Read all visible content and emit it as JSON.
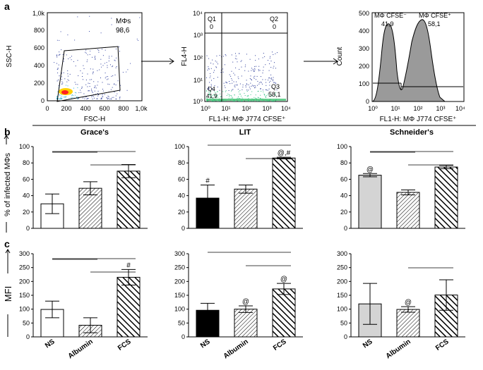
{
  "panel_labels": {
    "a": "a",
    "b": "b",
    "c": "c"
  },
  "dotplot1": {
    "gate_label": "MΦs",
    "gate_value": "98,6",
    "xlabel": "FSC-H",
    "ylabel": "SSC-H",
    "xticks": [
      "0",
      "200",
      "400",
      "600",
      "800",
      "1,0k"
    ],
    "yticks": [
      "0",
      "200",
      "400",
      "600",
      "800",
      "1,0k"
    ]
  },
  "dotplot2": {
    "xlabel": "FL1-H: MΦ J774 CFSE⁺",
    "ylabel": "FL4-H",
    "xticks": [
      "10⁰",
      "10¹",
      "10²",
      "10³",
      "10⁴"
    ],
    "yticks": [
      "10⁰",
      "10¹",
      "10²",
      "10³",
      "10⁴"
    ],
    "quadrants": [
      {
        "name": "Q1",
        "value": "0"
      },
      {
        "name": "Q2",
        "value": "0"
      },
      {
        "name": "Q3",
        "value": "58,1"
      },
      {
        "name": "Q4",
        "value": "41,9"
      }
    ]
  },
  "histogram": {
    "xlabel": "FL1-H: MΦ J774 CFSE⁺",
    "ylabel": "Count",
    "neg_label": "MΦ CFSE⁻",
    "neg_value": "41,9",
    "pos_label": "MΦ CFSE⁺",
    "pos_value": "58,1",
    "xticks": [
      "10⁰",
      "10¹",
      "10²",
      "10³",
      "10⁴"
    ],
    "yticks": [
      "0",
      "100",
      "200",
      "300",
      "400",
      "500"
    ]
  },
  "groups": [
    "Grace's",
    "LIT",
    "Schneider's"
  ],
  "categories": [
    "NS",
    "Albumin",
    "FCS"
  ],
  "ylabel_b": "% of infected MΦs",
  "ylabel_c": "MFI",
  "chart_data": [
    {
      "type": "bar",
      "panel": "b",
      "medium": "Grace's",
      "categories": [
        "NS",
        "Albumin",
        "FCS"
      ],
      "values": [
        30,
        49,
        70
      ],
      "errors": [
        12,
        8,
        8
      ],
      "ylim": [
        0,
        100
      ],
      "yticks": [
        0,
        20,
        40,
        60,
        80,
        100
      ],
      "ylabel": "% of infected MΦs",
      "annotations": [
        "",
        "",
        ""
      ],
      "significance_brackets": [
        [
          0,
          1
        ],
        [
          0,
          2
        ],
        [
          1,
          2
        ]
      ]
    },
    {
      "type": "bar",
      "panel": "b",
      "medium": "LIT",
      "categories": [
        "NS",
        "Albumin",
        "FCS"
      ],
      "values": [
        37,
        48,
        86
      ],
      "errors": [
        16,
        5,
        1
      ],
      "ylim": [
        0,
        100
      ],
      "yticks": [
        0,
        20,
        40,
        60,
        80,
        100
      ],
      "ylabel": "% of infected MΦs",
      "annotations": [
        "#",
        "",
        "@,#"
      ],
      "significance_brackets": [
        [
          0,
          2
        ],
        [
          1,
          2
        ]
      ]
    },
    {
      "type": "bar",
      "panel": "b",
      "medium": "Schneider's",
      "categories": [
        "NS",
        "Albumin",
        "FCS"
      ],
      "values": [
        65,
        44,
        75
      ],
      "errors": [
        2,
        3,
        2
      ],
      "ylim": [
        0,
        100
      ],
      "yticks": [
        0,
        20,
        40,
        60,
        80,
        100
      ],
      "ylabel": "% of infected MΦs",
      "annotations": [
        "@",
        "",
        ""
      ],
      "significance_brackets": [
        [
          0,
          1
        ],
        [
          0,
          2
        ],
        [
          1,
          2
        ]
      ]
    },
    {
      "type": "bar",
      "panel": "c",
      "medium": "Grace's",
      "categories": [
        "NS",
        "Albumin",
        "FCS"
      ],
      "values": [
        99,
        42,
        215
      ],
      "errors": [
        30,
        27,
        28
      ],
      "ylim": [
        0,
        300
      ],
      "yticks": [
        0,
        50,
        100,
        150,
        200,
        250,
        300
      ],
      "ylabel": "MFI",
      "annotations": [
        "",
        "",
        "#"
      ],
      "significance_brackets": [
        [
          0,
          1
        ],
        [
          0,
          2
        ],
        [
          1,
          2
        ]
      ]
    },
    {
      "type": "bar",
      "panel": "c",
      "medium": "LIT",
      "categories": [
        "NS",
        "Albumin",
        "FCS"
      ],
      "values": [
        96,
        100,
        173
      ],
      "errors": [
        25,
        12,
        20
      ],
      "ylim": [
        0,
        300
      ],
      "yticks": [
        0,
        50,
        100,
        150,
        200,
        250,
        300
      ],
      "ylabel": "MFI",
      "annotations": [
        "",
        "@",
        "@"
      ],
      "significance_brackets": [
        [
          0,
          2
        ],
        [
          1,
          2
        ]
      ]
    },
    {
      "type": "bar",
      "panel": "c",
      "medium": "Schneider's",
      "categories": [
        "NS",
        "Albumin",
        "FCS"
      ],
      "values": [
        119,
        99,
        151
      ],
      "errors": [
        74,
        10,
        55
      ],
      "ylim": [
        0,
        300
      ],
      "yticks": [
        0,
        50,
        100,
        150,
        200,
        250,
        300
      ],
      "ylabel": "MFI",
      "annotations": [
        "",
        "@",
        ""
      ],
      "significance_brackets": [
        [
          1,
          2
        ]
      ]
    }
  ]
}
